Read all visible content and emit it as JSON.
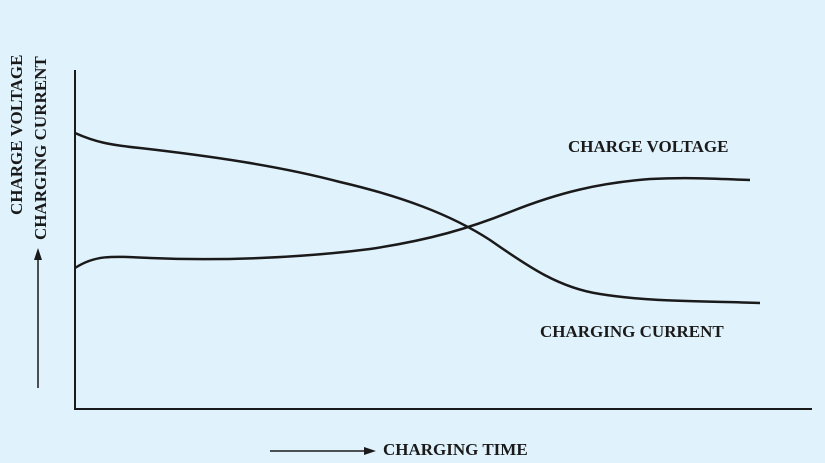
{
  "y_axis": {
    "labels": [
      "CHARGE VOLTAGE",
      "CHARGING CURRENT"
    ]
  },
  "x_axis": {
    "label": "CHARGING TIME"
  },
  "curves": [
    {
      "label": "CHARGE VOLTAGE"
    },
    {
      "label": "CHARGING CURRENT"
    }
  ]
}
